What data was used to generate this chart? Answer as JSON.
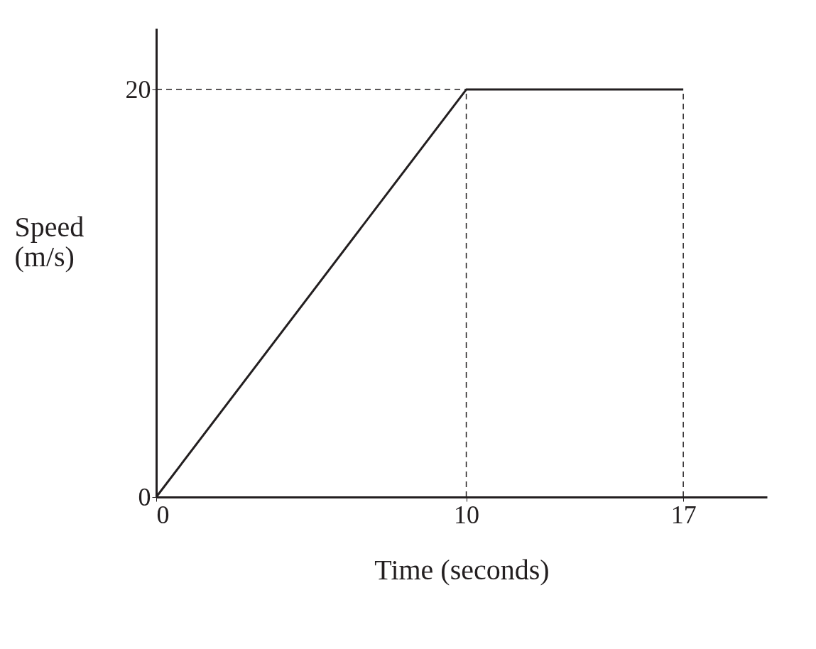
{
  "chart_data": {
    "type": "line",
    "xlabel": "Time (seconds)",
    "ylabel": "Speed (m/s)",
    "x": [
      0,
      10,
      17
    ],
    "series": [
      {
        "color": "#231f20",
        "values": [
          0,
          20,
          20
        ],
        "line_style": "solid"
      },
      {
        "color": "#231f20",
        "x": [
          0,
          10
        ],
        "values": [
          20,
          20
        ],
        "line_style": "dashed"
      },
      {
        "color": "#231f20",
        "x": [
          10,
          10
        ],
        "values": [
          0,
          20
        ],
        "line_style": "dashed"
      },
      {
        "color": "#231f20",
        "x": [
          17,
          17
        ],
        "values": [
          0,
          20
        ],
        "line_style": "dashed"
      }
    ],
    "xlim": [
      0,
      19.7
    ],
    "ylim": [
      0,
      23
    ],
    "xticks": [
      0,
      10,
      17
    ],
    "yticks": [
      0,
      20
    ],
    "grid": false,
    "marker": "none"
  }
}
